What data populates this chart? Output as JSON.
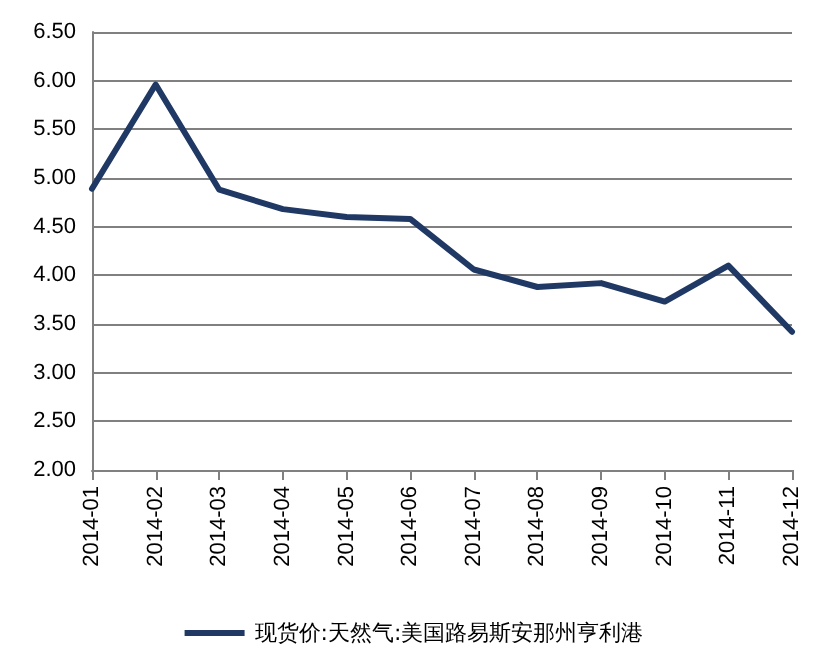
{
  "chart_data": {
    "type": "line",
    "categories": [
      "2014-01",
      "2014-02",
      "2014-03",
      "2014-04",
      "2014-05",
      "2014-06",
      "2014-07",
      "2014-08",
      "2014-09",
      "2014-10",
      "2014-11",
      "2014-12"
    ],
    "series": [
      {
        "name": "现货价:天然气:美国路易斯安那州亨利港",
        "color": "#1f3864",
        "values": [
          4.89,
          5.96,
          4.88,
          4.68,
          4.6,
          4.58,
          4.06,
          3.88,
          3.92,
          3.73,
          4.1,
          3.42
        ]
      }
    ],
    "ylim": [
      2.0,
      6.5
    ],
    "yticks": [
      {
        "value": 2,
        "label": "2.00"
      },
      {
        "value": 2.5,
        "label": "2.50"
      },
      {
        "value": 3,
        "label": "3.00"
      },
      {
        "value": 3.5,
        "label": "3.50"
      },
      {
        "value": 4,
        "label": "4.00"
      },
      {
        "value": 4.5,
        "label": "4.50"
      },
      {
        "value": 5,
        "label": "5.00"
      },
      {
        "value": 5.5,
        "label": "5.50"
      },
      {
        "value": 6,
        "label": "6.00"
      },
      {
        "value": 6.5,
        "label": "6.50"
      }
    ],
    "grid": "y",
    "legend": "bottom",
    "marker": "none",
    "line_style": "solid"
  }
}
